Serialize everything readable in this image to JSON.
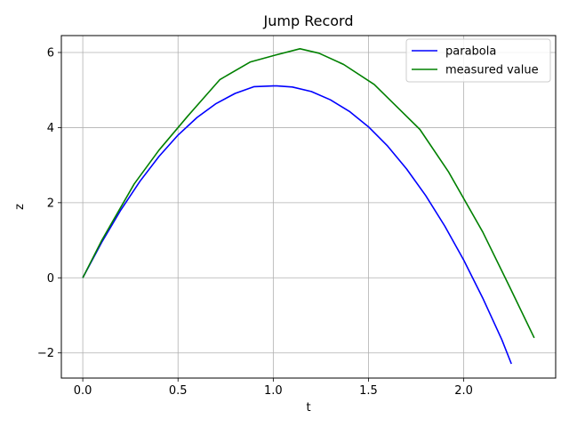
{
  "chart_data": {
    "type": "line",
    "title": "Jump Record",
    "xlabel": "t",
    "ylabel": "z",
    "xlim": [
      -0.1125,
      2.4825
    ],
    "ylim": [
      -2.67,
      6.45
    ],
    "x_ticks": [
      0.0,
      0.5,
      1.0,
      1.5,
      2.0
    ],
    "x_tick_labels": [
      "0.0",
      "0.5",
      "1.0",
      "1.5",
      "2.0"
    ],
    "y_ticks": [
      -2,
      0,
      2,
      4,
      6
    ],
    "y_tick_labels": [
      "−2",
      "0",
      "2",
      "4",
      "6"
    ],
    "grid": true,
    "legend_position": "top-right",
    "series": [
      {
        "name": "parabola",
        "color": "#0000ff",
        "x": [
          0.0,
          0.1,
          0.2,
          0.3,
          0.4,
          0.5,
          0.6,
          0.7,
          0.8,
          0.9,
          1.0,
          1.02,
          1.1,
          1.2,
          1.3,
          1.4,
          1.5,
          1.6,
          1.7,
          1.8,
          1.9,
          2.0,
          2.1,
          2.2,
          2.25
        ],
        "y": [
          0.0,
          0.95,
          1.81,
          2.57,
          3.23,
          3.8,
          4.27,
          4.64,
          4.91,
          5.09,
          5.11,
          5.11,
          5.08,
          4.96,
          4.74,
          4.43,
          4.02,
          3.51,
          2.9,
          2.19,
          1.38,
          0.47,
          -0.54,
          -1.65,
          -2.29
        ]
      },
      {
        "name": "measured value",
        "color": "#008000",
        "x": [
          0.0,
          0.1,
          0.27,
          0.4,
          0.55,
          0.72,
          0.88,
          1.01,
          1.14,
          1.24,
          1.37,
          1.53,
          1.77,
          1.92,
          2.1,
          2.24,
          2.37
        ],
        "y": [
          0.0,
          1.0,
          2.5,
          3.4,
          4.3,
          5.28,
          5.75,
          5.93,
          6.1,
          5.98,
          5.68,
          5.15,
          3.95,
          2.82,
          1.22,
          -0.23,
          -1.6
        ]
      }
    ]
  }
}
